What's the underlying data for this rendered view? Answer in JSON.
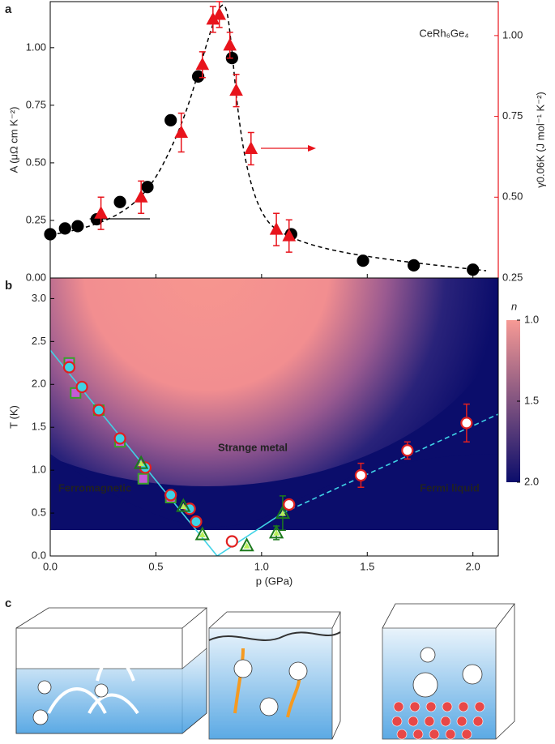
{
  "chart_data": [
    {
      "type": "scatter",
      "label": "a",
      "ylabel": "A (μΩ cm K⁻²)",
      "y2label": "γ0.06K (J mol⁻¹ K⁻²)",
      "annotations": [
        "CeRh₆Ge₄"
      ],
      "xlim": [
        0,
        2.12
      ],
      "xticks": [
        0,
        0.5,
        1,
        1.5,
        2
      ],
      "xtick_labels": false,
      "ylim": [
        0,
        1.2
      ],
      "yticks": [
        {
          "value": 0,
          "label": "0.00"
        },
        0.25,
        {
          "value": 0.5,
          "label": "0.50"
        },
        0.75,
        {
          "value": 1,
          "label": "1.00"
        }
      ],
      "y2lim": [
        0.25,
        1.105
      ],
      "y2ticks": [
        0.25,
        {
          "value": 0.5,
          "label": "0.50"
        },
        0.75,
        {
          "value": 1,
          "label": "1.00"
        }
      ],
      "y2color": "#e8141c",
      "series": [
        {
          "marker": "circle",
          "color": "#000000",
          "edgecolor": "#000000",
          "x": [
            0,
            0.07,
            0.13,
            0.22,
            0.33,
            0.46,
            0.57,
            0.7,
            0.86,
            1.14,
            1.48,
            1.72,
            2.0
          ],
          "values": [
            0.19,
            0.215,
            0.225,
            0.255,
            0.33,
            0.395,
            0.685,
            0.875,
            0.955,
            0.19,
            0.075,
            0.055,
            0.036
          ]
        },
        {
          "marker": "triangle",
          "axis": "y2",
          "color": "#e8141c",
          "edgecolor": "#e8141c",
          "x": [
            0.24,
            0.43,
            0.62,
            0.72,
            0.77,
            0.8,
            0.85,
            0.88,
            0.95,
            1.07,
            1.13
          ],
          "values": [
            0.45,
            0.5,
            0.7,
            0.91,
            1.05,
            1.065,
            0.97,
            0.83,
            0.65,
            0.4,
            0.38
          ],
          "errors": [
            0.05,
            0.05,
            0.06,
            0.04,
            0.04,
            0.04,
            0.04,
            0.05,
            0.05,
            0.05,
            0.05
          ]
        }
      ]
    },
    {
      "type": "scatter",
      "label": "b",
      "xlabel": "p (GPa)",
      "ylabel": "T (K)",
      "annotations": [
        "Strange metal",
        "Ferromagnetic",
        "Fermi liquid"
      ],
      "xlim": [
        0,
        2.12
      ],
      "xticks": [
        {
          "value": 0,
          "label": "0.0"
        },
        0.5,
        {
          "value": 1,
          "label": "1.0"
        },
        1.5,
        {
          "value": 2,
          "label": "2.0"
        }
      ],
      "xtick_labels": true,
      "ylim": [
        0,
        3.24
      ],
      "yticks": [
        {
          "value": 0,
          "label": "0.0"
        },
        0.5,
        {
          "value": 1,
          "label": "1.0"
        },
        1.5,
        {
          "value": 2,
          "label": "2.0"
        },
        2.5,
        {
          "value": 3,
          "label": "3.0"
        }
      ],
      "colorbar": {
        "label": "n",
        "lim": [
          1,
          2
        ],
        "colors": [
          "#f79a95",
          "#0b0d6b"
        ],
        "ticks": [
          {
            "value": 1,
            "label": "1.0"
          },
          1.5,
          {
            "value": 2,
            "label": "2.0"
          }
        ]
      },
      "series": [
        {
          "marker": "square",
          "color": "#c45ad8",
          "edgecolor": "#3aa02a",
          "x": [
            0.09,
            0.12,
            0.23,
            0.33,
            0.44,
            0.57
          ],
          "values": [
            2.25,
            1.9,
            1.7,
            1.33,
            0.9,
            0.68
          ]
        },
        {
          "marker": "circle",
          "color": "#3fd2e6",
          "edgecolor": "#e02020",
          "x": [
            0.09,
            0.15,
            0.23,
            0.33,
            0.45,
            0.57,
            0.66,
            0.69
          ],
          "values": [
            2.2,
            1.97,
            1.7,
            1.37,
            1.03,
            0.71,
            0.55,
            0.4
          ]
        },
        {
          "marker": "triangle-open",
          "color": "#b8ef5a",
          "edgecolor": "#1d7a1d",
          "x": [
            0.43,
            0.63,
            0.72,
            0.93,
            1.07,
            1.1
          ],
          "values": [
            1.08,
            0.58,
            0.25,
            0.12,
            0.27,
            0.5
          ],
          "errors": [
            0,
            0,
            0,
            0,
            0.08,
            0.2
          ]
        },
        {
          "marker": "circle",
          "color": "#ffffff",
          "edgecolor": "#e02020",
          "x": [
            0.86,
            1.13,
            1.47,
            1.69,
            1.97
          ],
          "values": [
            0.17,
            0.6,
            0.94,
            1.23,
            1.55
          ],
          "errors": [
            0,
            0.05,
            0.14,
            0.1,
            0.22
          ]
        }
      ]
    }
  ],
  "diagram": {
    "label": "c"
  }
}
